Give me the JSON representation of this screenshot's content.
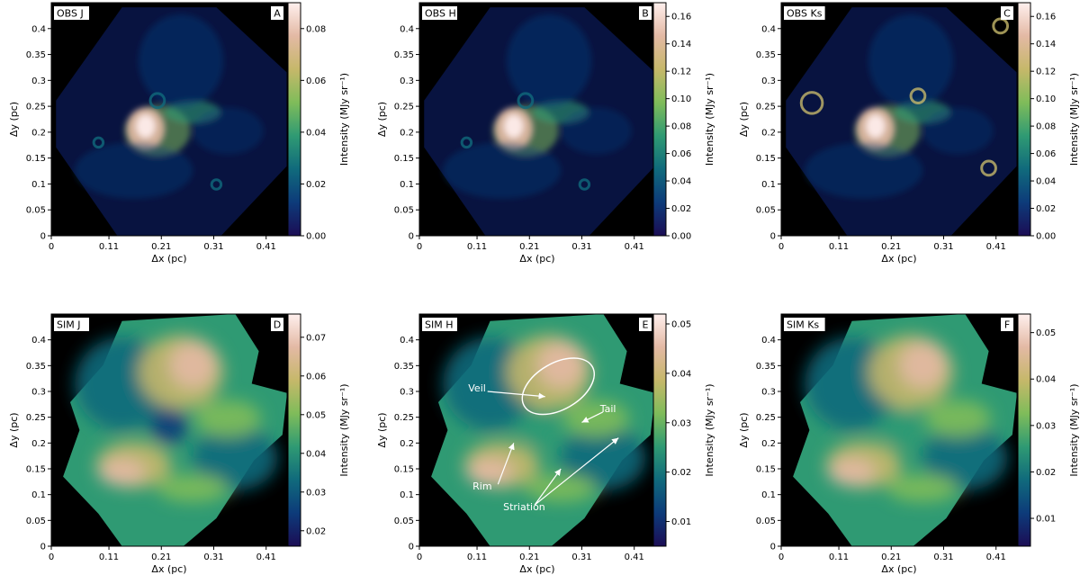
{
  "chart_data": [
    {
      "type": "heatmap",
      "panel_label": "OBS J",
      "panel_letter": "A",
      "xlabel": "Δx (pc)",
      "ylabel": "Δy (pc)",
      "x_ticks": [
        "0",
        "0.11",
        "0.21",
        "0.31",
        "0.41"
      ],
      "y_ticks": [
        "0",
        "0.05",
        "0.1",
        "0.15",
        "0.2",
        "0.25",
        "0.3",
        "0.35",
        "0.4"
      ],
      "xlim": [
        0,
        0.45
      ],
      "ylim": [
        0,
        0.45
      ],
      "colorbar": {
        "label": "Intensity (MJy sr⁻¹)",
        "range": [
          0,
          0.09
        ],
        "ticks": [
          "0.00",
          "0.02",
          "0.04",
          "0.06",
          "0.08"
        ],
        "tick_values": [
          0,
          0.02,
          0.04,
          0.06,
          0.08
        ]
      }
    },
    {
      "type": "heatmap",
      "panel_label": "OBS H",
      "panel_letter": "B",
      "xlabel": "Δx (pc)",
      "ylabel": "Δy (pc)",
      "x_ticks": [
        "0",
        "0.11",
        "0.21",
        "0.31",
        "0.41"
      ],
      "y_ticks": [
        "0",
        "0.05",
        "0.1",
        "0.15",
        "0.2",
        "0.25",
        "0.3",
        "0.35",
        "0.4"
      ],
      "xlim": [
        0,
        0.45
      ],
      "ylim": [
        0,
        0.45
      ],
      "colorbar": {
        "label": "Intensity (MJy sr⁻¹)",
        "range": [
          0,
          0.17
        ],
        "ticks": [
          "0.00",
          "0.02",
          "0.04",
          "0.06",
          "0.08",
          "0.10",
          "0.12",
          "0.14",
          "0.16"
        ],
        "tick_values": [
          0,
          0.02,
          0.04,
          0.06,
          0.08,
          0.1,
          0.12,
          0.14,
          0.16
        ]
      }
    },
    {
      "type": "heatmap",
      "panel_label": "OBS Ks",
      "panel_letter": "C",
      "xlabel": "Δx (pc)",
      "ylabel": "Δy (pc)",
      "x_ticks": [
        "0",
        "0.11",
        "0.21",
        "0.31",
        "0.41"
      ],
      "y_ticks": [
        "0",
        "0.05",
        "0.1",
        "0.15",
        "0.2",
        "0.25",
        "0.3",
        "0.35",
        "0.4"
      ],
      "xlim": [
        0,
        0.45
      ],
      "ylim": [
        0,
        0.45
      ],
      "colorbar": {
        "label": "Intensity (MJy sr⁻¹)",
        "range": [
          0,
          0.17
        ],
        "ticks": [
          "0.00",
          "0.02",
          "0.04",
          "0.06",
          "0.08",
          "0.10",
          "0.12",
          "0.14",
          "0.16"
        ],
        "tick_values": [
          0,
          0.02,
          0.04,
          0.06,
          0.08,
          0.1,
          0.12,
          0.14,
          0.16
        ]
      }
    },
    {
      "type": "heatmap",
      "panel_label": "SIM J",
      "panel_letter": "D",
      "xlabel": "Δx (pc)",
      "ylabel": "Δy (pc)",
      "x_ticks": [
        "0",
        "0.11",
        "0.21",
        "0.31",
        "0.41"
      ],
      "y_ticks": [
        "0",
        "0.05",
        "0.1",
        "0.15",
        "0.2",
        "0.25",
        "0.3",
        "0.35",
        "0.4"
      ],
      "xlim": [
        0,
        0.45
      ],
      "ylim": [
        0,
        0.45
      ],
      "colorbar": {
        "label": "Intensity (MJy sr⁻¹)",
        "range": [
          0.016,
          0.076
        ],
        "ticks": [
          "0.02",
          "0.03",
          "0.04",
          "0.05",
          "0.06",
          "0.07"
        ],
        "tick_values": [
          0.02,
          0.03,
          0.04,
          0.05,
          0.06,
          0.07
        ]
      }
    },
    {
      "type": "heatmap",
      "panel_label": "SIM H",
      "panel_letter": "E",
      "xlabel": "Δx (pc)",
      "ylabel": "Δy (pc)",
      "x_ticks": [
        "0",
        "0.11",
        "0.21",
        "0.31",
        "0.41"
      ],
      "y_ticks": [
        "0",
        "0.05",
        "0.1",
        "0.15",
        "0.2",
        "0.25",
        "0.3",
        "0.35",
        "0.4"
      ],
      "xlim": [
        0,
        0.45
      ],
      "ylim": [
        0,
        0.45
      ],
      "colorbar": {
        "label": "Intensity (MJy sr⁻¹)",
        "range": [
          0.005,
          0.052
        ],
        "ticks": [
          "0.01",
          "0.02",
          "0.03",
          "0.04",
          "0.05"
        ],
        "tick_values": [
          0.01,
          0.02,
          0.03,
          0.04,
          0.05
        ]
      },
      "annotations": [
        {
          "text": "Veil",
          "x": 0.11,
          "y": 0.3
        },
        {
          "text": "Tail",
          "x": 0.36,
          "y": 0.26
        },
        {
          "text": "Rim",
          "x": 0.12,
          "y": 0.11
        },
        {
          "text": "Striation",
          "x": 0.2,
          "y": 0.07
        }
      ]
    },
    {
      "type": "heatmap",
      "panel_label": "SIM Ks",
      "panel_letter": "F",
      "xlabel": "Δx (pc)",
      "ylabel": "Δy (pc)",
      "x_ticks": [
        "0",
        "0.11",
        "0.21",
        "0.31",
        "0.41"
      ],
      "y_ticks": [
        "0",
        "0.05",
        "0.1",
        "0.15",
        "0.2",
        "0.25",
        "0.3",
        "0.35",
        "0.4"
      ],
      "xlim": [
        0,
        0.45
      ],
      "ylim": [
        0,
        0.45
      ],
      "colorbar": {
        "label": "Intensity (MJy sr⁻¹)",
        "range": [
          0.004,
          0.054
        ],
        "ticks": [
          "0.01",
          "0.02",
          "0.03",
          "0.04",
          "0.05"
        ],
        "tick_values": [
          0.01,
          0.02,
          0.03,
          0.04,
          0.05
        ]
      }
    }
  ],
  "colormap": [
    "#1b0d55",
    "#0d3b7a",
    "#106a7c",
    "#2f9a73",
    "#7fbc5a",
    "#c6b86a",
    "#e3b9a4",
    "#fff0ee"
  ]
}
